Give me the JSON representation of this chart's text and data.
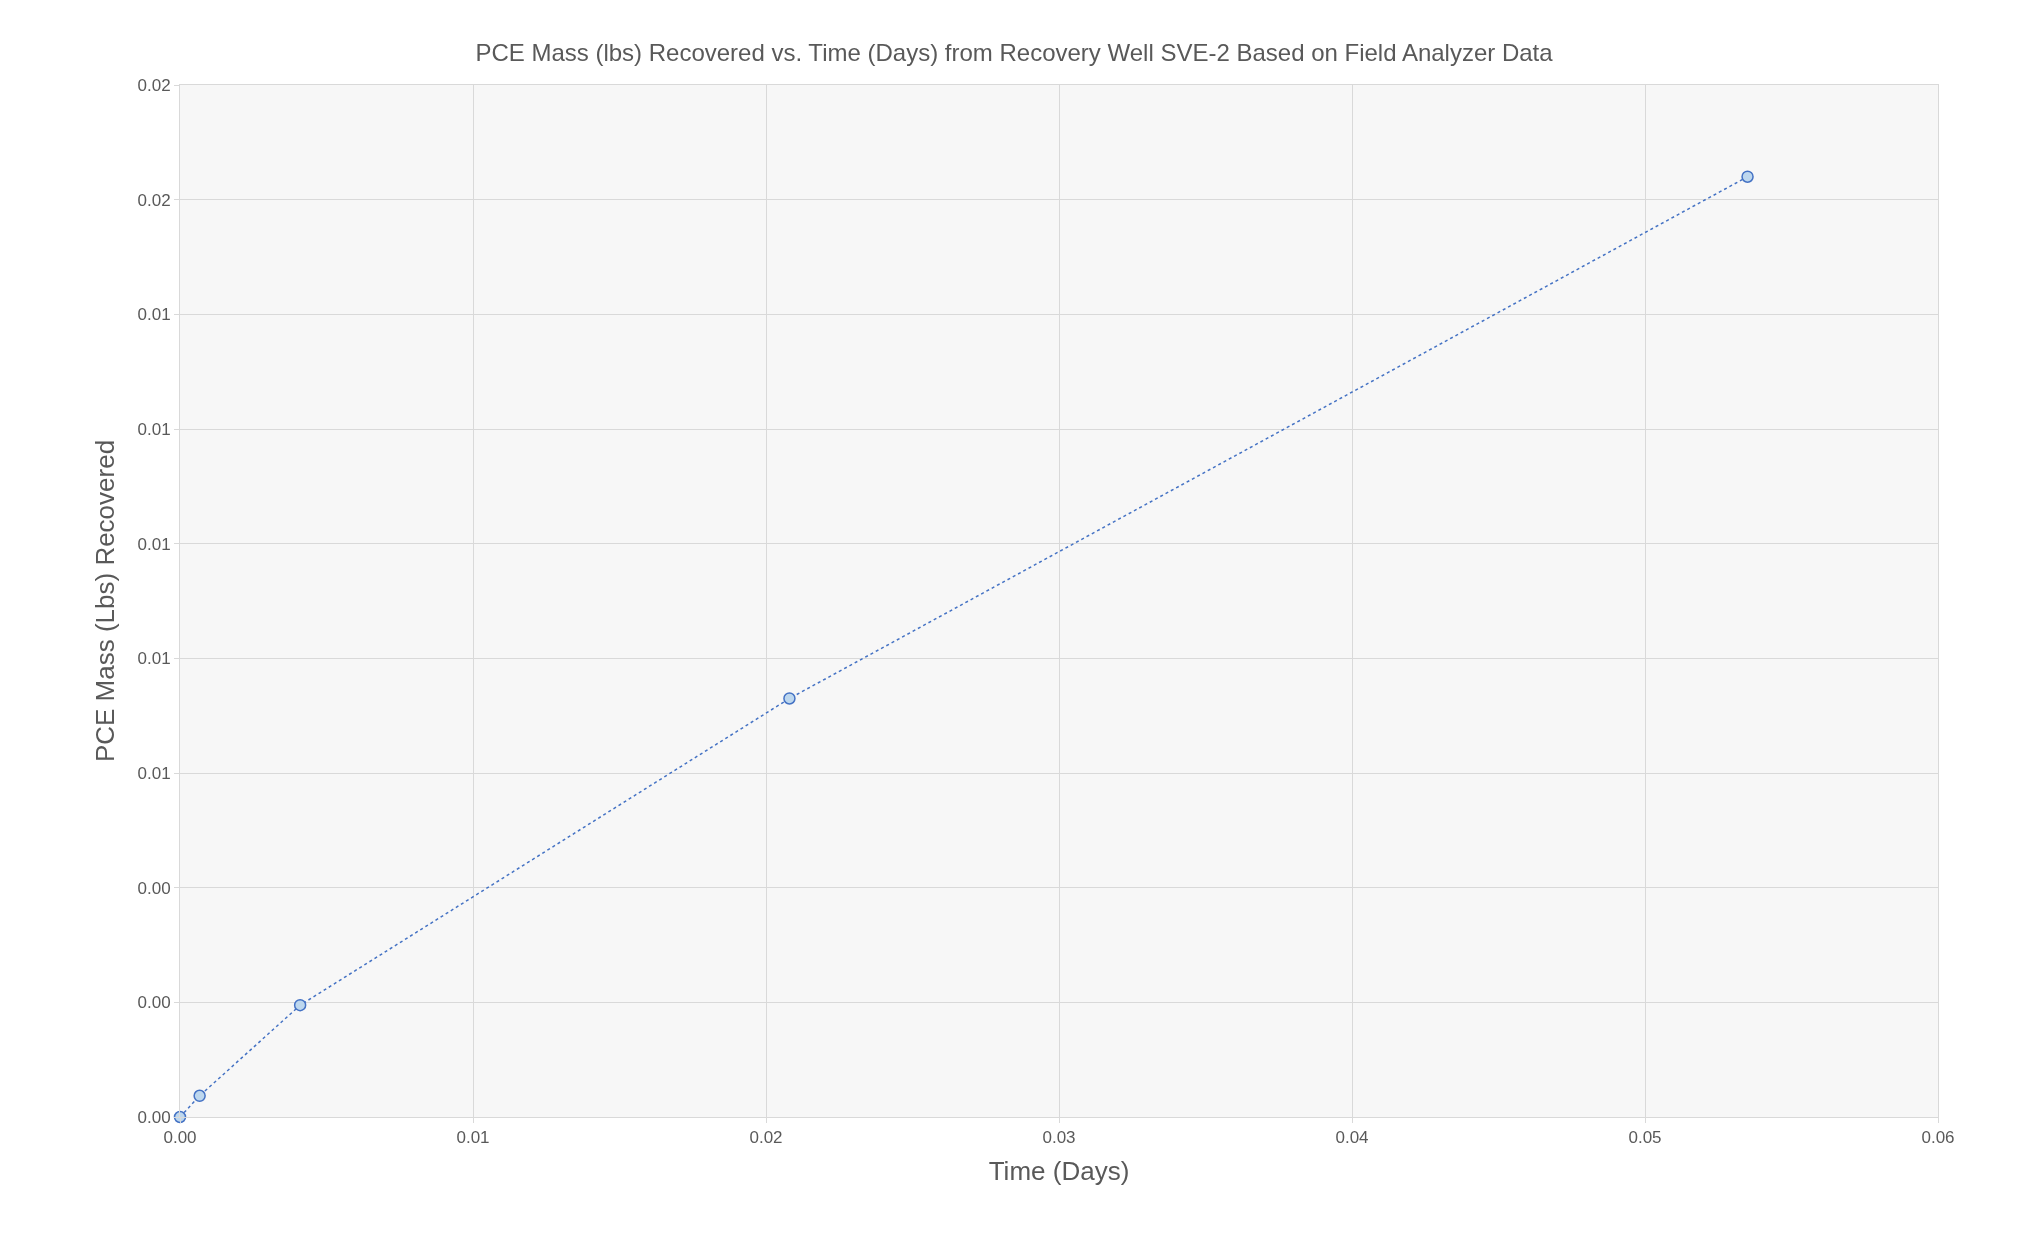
{
  "chart_data": {
    "type": "line",
    "title": "PCE Mass (lbs) Recovered vs. Time (Days) from Recovery Well SVE-2 Based on Field Analyzer Data",
    "xlabel": "Time (Days)",
    "ylabel": "PCE Mass (Lbs) Recovered",
    "x": [
      0,
      0.00067,
      0.0041,
      0.0208,
      0.0535
    ],
    "series": [
      {
        "color": "#4472c4",
        "values": [
          0,
          0.00037,
          0.00195,
          0.0073,
          0.0164
        ]
      }
    ],
    "xlim": [
      0,
      0.06
    ],
    "xticks": [
      {
        "value": 0,
        "label": "0.00"
      },
      0.01,
      0.02,
      0.03,
      0.04,
      0.05,
      {
        "value": 0.06,
        "label": "0.06"
      }
    ],
    "ylim": [
      0,
      0.018
    ],
    "yticks": [
      {
        "value": 0,
        "label": "0.00"
      },
      {
        "value": 0.002,
        "label": "0.00"
      },
      {
        "value": 0.004,
        "label": "0.00"
      },
      {
        "value": 0.006,
        "label": "0.01"
      },
      {
        "value": 0.008,
        "label": "0.01"
      },
      {
        "value": 0.01,
        "label": "0.01"
      },
      {
        "value": 0.012,
        "label": "0.01"
      },
      {
        "value": 0.014,
        "label": "0.01"
      },
      {
        "value": 0.016,
        "label": "0.02"
      },
      {
        "value": 0.018,
        "label": "0.02"
      }
    ],
    "grid": true,
    "marker": "circle",
    "line_style": "dotted",
    "legend": false
  }
}
